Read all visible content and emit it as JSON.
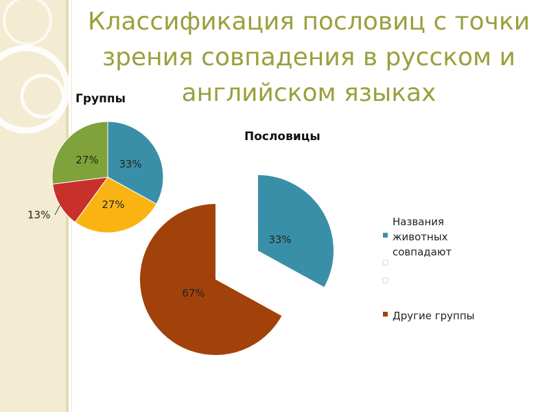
{
  "slide": {
    "title": "Классификация пословиц с точки зрения совпадения в русском и английском языках",
    "colors": {
      "title": "#9aa03d",
      "band": "#f3ebd2"
    }
  },
  "chart_data": [
    {
      "type": "pie",
      "title": "Группы",
      "slices": [
        {
          "label": "33%",
          "value": 33,
          "color": "#3a8fa8"
        },
        {
          "label": "27%",
          "value": 27,
          "color": "#f9b414"
        },
        {
          "label": "13%",
          "value": 13,
          "color": "#c8302b"
        },
        {
          "label": "27%",
          "value": 27,
          "color": "#7fa23a"
        }
      ]
    },
    {
      "type": "pie",
      "title": "Пословицы",
      "slices": [
        {
          "label": "33%",
          "value": 33,
          "color": "#3a8fa8",
          "legend": "Названия животных совпадают",
          "exploded": true
        },
        {
          "label": "67%",
          "value": 67,
          "color": "#a1420a",
          "legend": "Другие группы",
          "exploded": false
        }
      ],
      "legend": {
        "position": "right",
        "entries": [
          {
            "lines": [
              "Названия",
              "животных",
              "совпадают"
            ],
            "color": "#3a8fa8"
          },
          {
            "lines": [
              ""
            ],
            "color": "#ffffff"
          },
          {
            "lines": [
              ""
            ],
            "color": "#ffffff"
          },
          {
            "lines": [
              "Другие группы"
            ],
            "color": "#a1420a"
          }
        ]
      }
    }
  ]
}
